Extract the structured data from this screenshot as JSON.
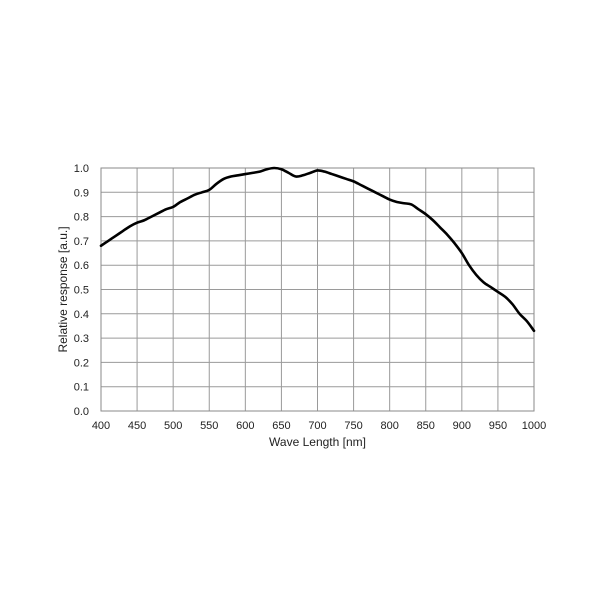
{
  "chart_data": {
    "type": "line",
    "xlabel": "Wave Length [nm]",
    "ylabel": "Relative response [a.u.]",
    "xlim": [
      400,
      1000
    ],
    "ylim": [
      0.0,
      1.0
    ],
    "xticks": [
      "400",
      "450",
      "500",
      "550",
      "600",
      "650",
      "700",
      "750",
      "800",
      "850",
      "900",
      "950",
      "1000"
    ],
    "yticks": [
      "0.0",
      "0.1",
      "0.2",
      "0.3",
      "0.4",
      "0.5",
      "0.6",
      "0.7",
      "0.8",
      "0.9",
      "1.0"
    ],
    "grid": true,
    "series": [
      {
        "color": "#000000",
        "x": [
          400,
          410,
          420,
          430,
          440,
          450,
          460,
          470,
          480,
          490,
          500,
          510,
          520,
          530,
          540,
          550,
          560,
          570,
          580,
          590,
          600,
          610,
          620,
          630,
          640,
          650,
          660,
          670,
          680,
          690,
          700,
          710,
          720,
          730,
          740,
          750,
          760,
          770,
          780,
          790,
          800,
          810,
          820,
          830,
          840,
          850,
          860,
          870,
          880,
          890,
          900,
          910,
          920,
          930,
          940,
          950,
          960,
          970,
          980,
          990,
          1000
        ],
        "y": [
          0.68,
          0.7,
          0.72,
          0.74,
          0.76,
          0.775,
          0.785,
          0.8,
          0.815,
          0.83,
          0.84,
          0.86,
          0.875,
          0.89,
          0.9,
          0.91,
          0.935,
          0.955,
          0.965,
          0.97,
          0.975,
          0.98,
          0.985,
          0.995,
          1.0,
          0.995,
          0.98,
          0.965,
          0.97,
          0.98,
          0.99,
          0.985,
          0.975,
          0.965,
          0.955,
          0.945,
          0.93,
          0.915,
          0.9,
          0.885,
          0.87,
          0.86,
          0.855,
          0.85,
          0.83,
          0.81,
          0.785,
          0.755,
          0.725,
          0.69,
          0.65,
          0.6,
          0.56,
          0.53,
          0.51,
          0.49,
          0.47,
          0.44,
          0.4,
          0.37,
          0.33
        ]
      }
    ]
  }
}
